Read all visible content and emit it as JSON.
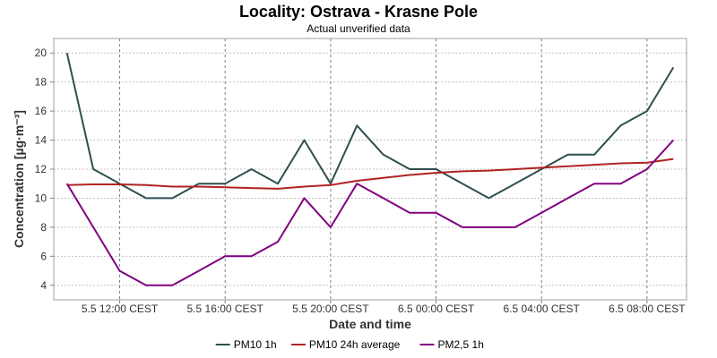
{
  "chart_data": {
    "type": "line",
    "title": "Locality: Ostrava - Krasne Pole",
    "subtitle": "Actual unverified data",
    "xlabel": "Date and time",
    "ylabel": "Concentration [µg·m⁻³]",
    "x_ticks": [
      "5.5 12:00 CEST",
      "5.5 16:00 CEST",
      "5.5 20:00 CEST",
      "6.5 00:00 CEST",
      "6.5 04:00 CEST",
      "6.5 08:00 CEST"
    ],
    "x_tick_hours": [
      12,
      16,
      20,
      24,
      28,
      32
    ],
    "x_hours": [
      10,
      11,
      12,
      13,
      14,
      15,
      16,
      17,
      18,
      19,
      20,
      21,
      22,
      23,
      24,
      25,
      26,
      27,
      28,
      29,
      30,
      31,
      32,
      33
    ],
    "xlim": [
      9.5,
      33.5
    ],
    "ylim": [
      3,
      21
    ],
    "y_ticks": [
      4,
      6,
      8,
      10,
      12,
      14,
      16,
      18,
      20
    ],
    "grid": true,
    "legend_position": "bottom",
    "series": [
      {
        "name": "PM10 1h",
        "color": "#2f4f4f",
        "values": [
          20,
          12,
          11,
          10,
          10,
          11,
          11,
          12,
          11,
          14,
          11,
          15,
          13,
          12,
          12,
          11,
          10,
          11,
          12,
          13,
          13,
          15,
          16,
          19
        ]
      },
      {
        "name": "PM10 24h average",
        "color": "#b22222",
        "values": [
          10.9,
          10.95,
          10.95,
          10.9,
          10.8,
          10.8,
          10.75,
          10.7,
          10.65,
          10.8,
          10.9,
          11.2,
          11.4,
          11.6,
          11.75,
          11.85,
          11.9,
          12.0,
          12.1,
          12.2,
          12.3,
          12.4,
          12.45,
          12.7
        ]
      },
      {
        "name": "PM2,5 1h",
        "color": "#800080",
        "values": [
          11,
          8,
          5,
          4,
          4,
          5,
          6,
          6,
          7,
          10,
          8,
          11,
          10,
          9,
          9,
          8,
          8,
          8,
          9,
          10,
          11,
          11,
          12,
          14
        ]
      }
    ]
  }
}
